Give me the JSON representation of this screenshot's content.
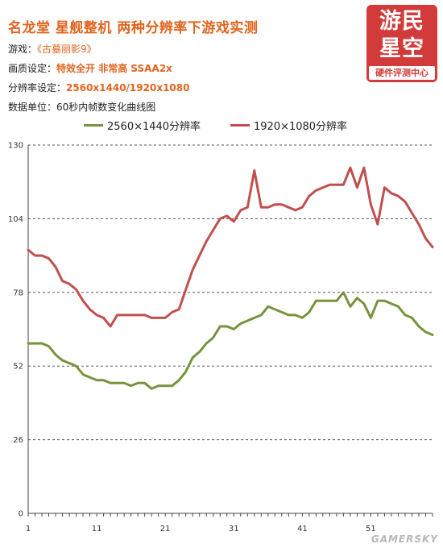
{
  "header": {
    "title": "名龙堂 星舰整机 两种分辨率下游戏实测",
    "game_label": "游戏：",
    "game_value": "《古墓丽影9》",
    "quality_label": "画质设定：",
    "quality_value": "特效全开  非常高  SSAA2x",
    "resolution_label": "分辨率设定：",
    "resolution_value": "2560x1440/1920x1080",
    "unit_label": "数据单位：60秒内帧数变化曲线图"
  },
  "logo": {
    "line1": "游民",
    "line2": "星空",
    "sub": "硬件评测中心"
  },
  "watermark": "GAMERSKY",
  "colors": {
    "series1": "#77933c",
    "series2": "#c0504d",
    "accent": "#e0641f",
    "logo_bg": "#d33a3a"
  },
  "chart_data": {
    "type": "line",
    "title": "",
    "xlabel": "",
    "ylabel": "",
    "ylim": [
      0,
      130
    ],
    "yticks": [
      0,
      26,
      52,
      78,
      104,
      130
    ],
    "xlim": [
      1,
      60
    ],
    "xticks": [
      1,
      11,
      21,
      31,
      41,
      51
    ],
    "grid": "horizontal-dashed",
    "legend_position": "top",
    "x": [
      1,
      2,
      3,
      4,
      5,
      6,
      7,
      8,
      9,
      10,
      11,
      12,
      13,
      14,
      15,
      16,
      17,
      18,
      19,
      20,
      21,
      22,
      23,
      24,
      25,
      26,
      27,
      28,
      29,
      30,
      31,
      32,
      33,
      34,
      35,
      36,
      37,
      38,
      39,
      40,
      41,
      42,
      43,
      44,
      45,
      46,
      47,
      48,
      49,
      50,
      51,
      52,
      53,
      54,
      55,
      56,
      57,
      58,
      59,
      60
    ],
    "series": [
      {
        "name": "2560×1440分辨率",
        "color": "#77933c",
        "values": [
          60,
          60,
          60,
          59,
          56,
          54,
          53,
          52,
          49,
          48,
          47,
          47,
          46,
          46,
          46,
          45,
          46,
          46,
          44,
          45,
          45,
          45,
          47,
          50,
          55,
          57,
          60,
          62,
          66,
          66,
          65,
          67,
          68,
          69,
          70,
          73,
          72,
          71,
          70,
          70,
          69,
          71,
          75,
          75,
          75,
          75,
          78,
          73,
          76,
          74,
          69,
          75,
          75,
          74,
          73,
          70,
          69,
          66,
          64,
          63
        ]
      },
      {
        "name": "1920×1080分辨率",
        "color": "#c0504d",
        "values": [
          93,
          91,
          91,
          90,
          87,
          82,
          81,
          79,
          75,
          72,
          70,
          69,
          66,
          70,
          70,
          70,
          70,
          70,
          69,
          69,
          69,
          71,
          72,
          79,
          86,
          91,
          96,
          100,
          104,
          105,
          103,
          107,
          108,
          121,
          108,
          108,
          109,
          109,
          108,
          107,
          108,
          112,
          114,
          115,
          116,
          116,
          116,
          122,
          115,
          122,
          109,
          102,
          115,
          113,
          112,
          110,
          106,
          102,
          97,
          94
        ]
      }
    ]
  }
}
